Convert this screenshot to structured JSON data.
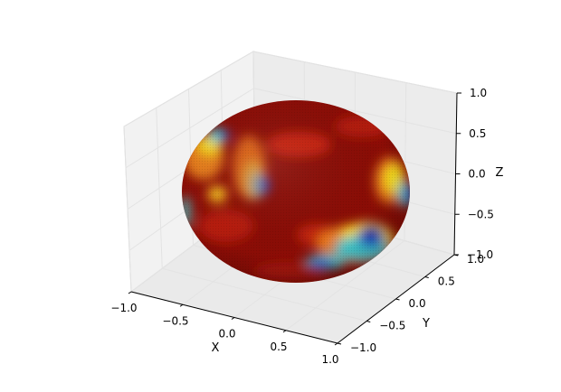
{
  "chart_data": {
    "type": "surface-3d",
    "title": "",
    "colormap": "jet",
    "shape": "sphere",
    "xlabel": "X",
    "ylabel": "Y",
    "zlabel": "Z",
    "xlim": [
      -1.0,
      1.0
    ],
    "ylim": [
      -1.0,
      1.0
    ],
    "zlim": [
      -1.0,
      1.0
    ],
    "xticks": [
      "−1.0",
      "−0.5",
      "0.0",
      "0.5",
      "1.0"
    ],
    "yticks": [
      "−1.0",
      "−0.5",
      "0.0",
      "0.5",
      "1.0"
    ],
    "zticks": [
      "−1.0",
      "−0.5",
      "0.0",
      "0.5",
      "1.0"
    ],
    "grid": true,
    "colors": {
      "base": "#8b0d06",
      "hot": "#e02c12",
      "orange": "#f08a1c",
      "yellow": "#f5e11d",
      "cyan": "#3fd1d6",
      "blue": "#2a58d8",
      "navy": "#1d2a9a",
      "pane": "#f2f2f2",
      "grid": "#e3e3e3"
    }
  }
}
